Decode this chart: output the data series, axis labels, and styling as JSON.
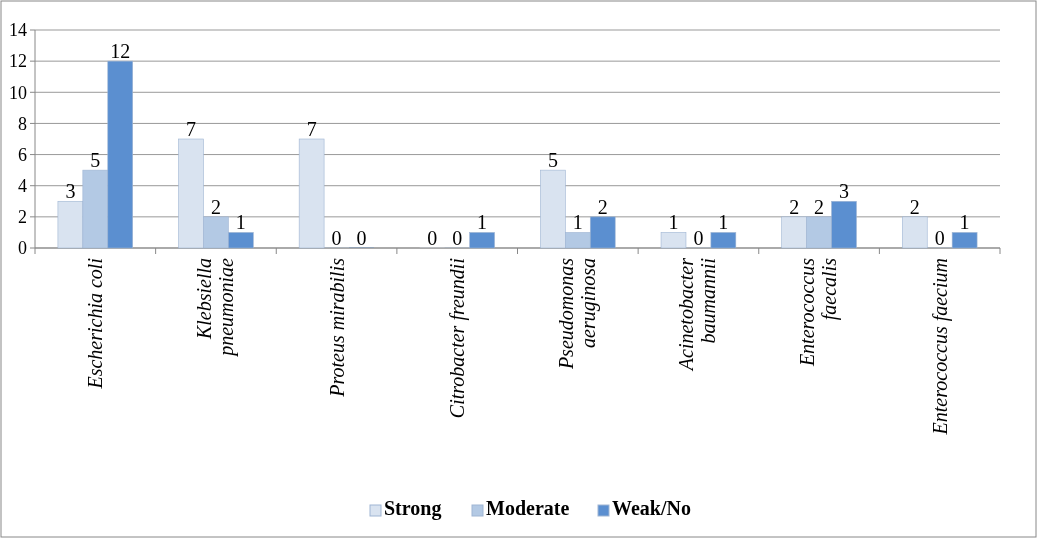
{
  "chart_data": {
    "type": "bar",
    "categories": [
      "Escherichia coli",
      "Klebsiella pneumoniae",
      "Proteus mirabilis",
      "Citrobacter freundii",
      "Pseudomonas aeruginosa",
      "Acinetobacter baumannii",
      "Enterococcus faecalis",
      "Enterococcus faecium"
    ],
    "series": [
      {
        "name": "Strong",
        "color": "#d9e3f0",
        "values": [
          3,
          7,
          7,
          0,
          5,
          1,
          2,
          2
        ]
      },
      {
        "name": "Moderate",
        "color": "#b3c9e4",
        "values": [
          5,
          2,
          0,
          0,
          1,
          0,
          2,
          0
        ]
      },
      {
        "name": "Weak/No",
        "color": "#5b8fd0",
        "values": [
          12,
          1,
          0,
          1,
          2,
          1,
          3,
          1
        ]
      }
    ],
    "ylim": [
      0,
      14
    ],
    "yticks": [
      0,
      2,
      4,
      6,
      8,
      10,
      12,
      14
    ],
    "grid": "y",
    "legend": "bottom",
    "data_labels": true
  }
}
